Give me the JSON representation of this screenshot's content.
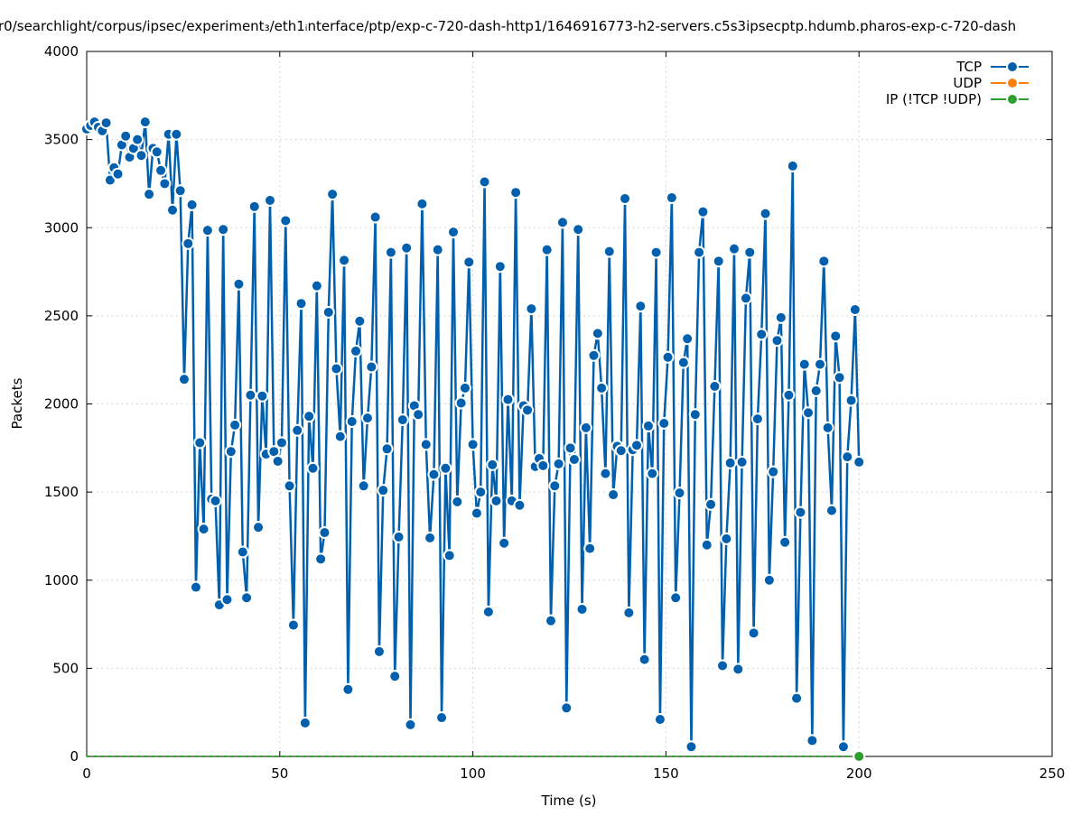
{
  "chart_data": {
    "type": "line",
    "title": "r0/searchlight/corpus/ipsec/experiment₃/eth1ᵢnterface/ptp/exp-c-720-dash-http1/1646916773-h2-servers.c5s3ipsecptp.hdumb.pharos-exp-c-720-dash",
    "xlabel": "Time (s)",
    "ylabel": "Packets",
    "xlim": [
      0,
      250
    ],
    "ylim": [
      0,
      4000
    ],
    "xticks": [
      "0",
      "50",
      "100",
      "150",
      "200",
      "250"
    ],
    "yticks": [
      "0",
      "500",
      "1000",
      "1500",
      "2000",
      "2500",
      "3000",
      "3500",
      "4000"
    ],
    "grid": true,
    "legend_position": "top-right",
    "series": [
      {
        "name": "TCP",
        "color": "#0060ad",
        "x_start": 0,
        "x_end": 200,
        "values": [
          3560,
          3580,
          3600,
          3570,
          3550,
          3595,
          3270,
          3340,
          3305,
          3470,
          3520,
          3400,
          3450,
          3500,
          3410,
          3600,
          3190,
          3450,
          3430,
          3325,
          3250,
          3530,
          3100,
          3530,
          3210,
          2140,
          2910,
          3130,
          960,
          1780,
          1290,
          2985,
          1460,
          1450,
          860,
          2990,
          890,
          1730,
          1880,
          2680,
          1160,
          900,
          2050,
          3120,
          1300,
          2045,
          1715,
          3155,
          1730,
          1675,
          1780,
          3040,
          1535,
          745,
          1850,
          2570,
          190,
          1930,
          1635,
          2670,
          1120,
          1270,
          2520,
          3190,
          2200,
          1815,
          2815,
          380,
          1900,
          2300,
          2470,
          1535,
          1920,
          2210,
          3060,
          595,
          1510,
          1745,
          2860,
          455,
          1245,
          1910,
          2885,
          180,
          1990,
          1940,
          3135,
          1770,
          1240,
          1600,
          2875,
          220,
          1635,
          1140,
          2975,
          1445,
          2005,
          2090,
          2805,
          1770,
          1380,
          1500,
          3260,
          820,
          1655,
          1450,
          2780,
          1210,
          2025,
          1450,
          3200,
          1425,
          1990,
          1965,
          2540,
          1645,
          1690,
          1650,
          2875,
          770,
          1535,
          1660,
          3030,
          275,
          1750,
          1685,
          2990,
          835,
          1865,
          1180,
          2275,
          2400,
          2090,
          1605,
          2865,
          1485,
          1760,
          1735,
          3165,
          815,
          1740,
          1765,
          2555,
          550,
          1875,
          1605,
          2860,
          210,
          1890,
          2265,
          3170,
          900,
          1495,
          2235,
          2370,
          55,
          1940,
          2860,
          3090,
          1200,
          1430,
          2100,
          2810,
          515,
          1235,
          1665,
          2880,
          495,
          1670,
          2600,
          2860,
          700,
          1915,
          2395,
          3080,
          1000,
          1615,
          2360,
          2490,
          1215,
          2050,
          3350,
          330,
          1385,
          2225,
          1950,
          90,
          2075,
          2225,
          2810,
          1865,
          1395,
          2385,
          2150,
          55,
          1700,
          2020,
          2535,
          1670
        ]
      },
      {
        "name": "UDP",
        "color": "#ff7f0e",
        "values": []
      },
      {
        "name": "IP (!TCP  !UDP)",
        "color": "#2ca02c",
        "points": [
          [
            200,
            0
          ]
        ]
      }
    ]
  }
}
